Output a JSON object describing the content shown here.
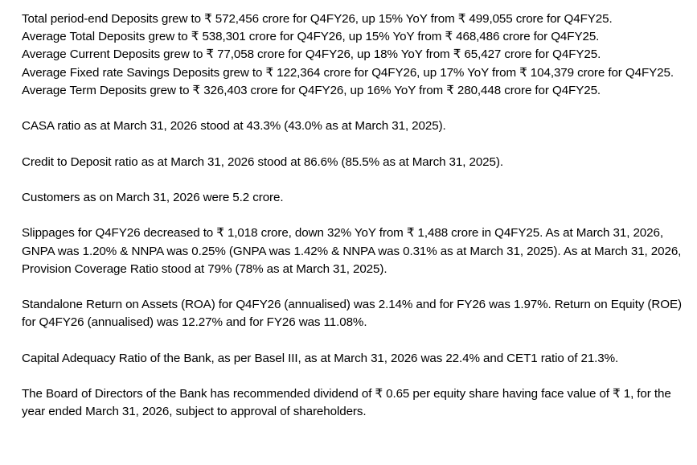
{
  "deposits": [
    "Total period-end Deposits grew to ₹ 572,456 crore for Q4FY26, up 15% YoY from ₹ 499,055 crore for Q4FY25.",
    "Average Total Deposits grew to ₹ 538,301 crore for Q4FY26, up 15% YoY from ₹ 468,486 crore for Q4FY25.",
    "Average Current Deposits grew to ₹ 77,058 crore for Q4FY26, up 18% YoY from ₹ 65,427 crore for Q4FY25.",
    "Average Fixed rate Savings Deposits grew to ₹ 122,364 crore for Q4FY26, up 17% YoY from ₹ 104,379 crore for Q4FY25.",
    "Average Term Deposits grew to ₹ 326,403 crore for Q4FY26, up 16% YoY from ₹ 280,448 crore for Q4FY25."
  ],
  "casa": "CASA ratio as at March 31, 2026 stood at 43.3% (43.0% as at March 31, 2025).",
  "credit_deposit": "Credit to Deposit ratio as at March 31, 2026 stood at 86.6% (85.5% as at March 31, 2025).",
  "customers": "Customers as on March 31, 2026 were 5.2 crore.",
  "slippages": "Slippages for Q4FY26 decreased to ₹ 1,018 crore, down 32% YoY from ₹ 1,488 crore in Q4FY25. As at March 31, 2026, GNPA was 1.20% & NNPA was 0.25% (GNPA was 1.42% & NNPA was 0.31% as at March 31, 2025). As at March 31, 2026, Provision Coverage Ratio stood at 79% (78% as at March 31, 2025).",
  "returns": "Standalone Return on Assets (ROA) for Q4FY26 (annualised) was 2.14% and for FY26 was 1.97%.  Return on Equity (ROE) for Q4FY26 (annualised) was 12.27% and for FY26 was 11.08%.",
  "capital": "Capital Adequacy Ratio of the Bank, as per Basel III, as at March 31, 2026 was 22.4% and CET1 ratio of 21.3%.",
  "dividend": "The Board of Directors of the Bank has recommended dividend of ₹ 0.65 per equity share having face value of ₹ 1, for the year ended March 31, 2026, subject to approval of shareholders."
}
